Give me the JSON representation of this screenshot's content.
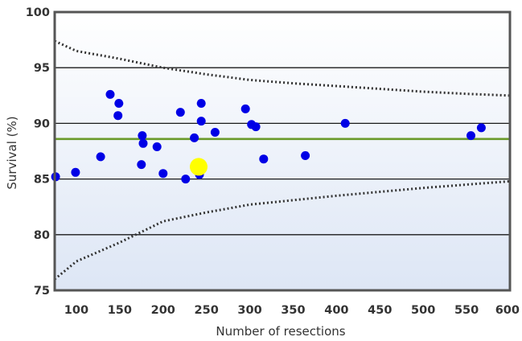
{
  "chart_data": {
    "type": "scatter",
    "title": "",
    "xlabel": "Number of resections",
    "ylabel": "Survival (%)",
    "xlim": [
      75,
      600
    ],
    "ylim": [
      75,
      100
    ],
    "x_ticks": [
      100,
      150,
      200,
      250,
      300,
      350,
      400,
      450,
      500,
      550,
      600
    ],
    "y_ticks": [
      75,
      80,
      85,
      90,
      95,
      100
    ],
    "x_tick_labels": [
      "100",
      "150",
      "200",
      "250",
      "300",
      "350",
      "400",
      "450",
      "500",
      "550",
      "600"
    ],
    "y_tick_labels": [
      "75",
      "80",
      "85",
      "90",
      "95",
      "100"
    ],
    "grid": "horizontal",
    "reference_line": {
      "y": 88.6,
      "color": "#6a9a2a"
    },
    "control_limits": {
      "upper": [
        [
          75,
          97.4
        ],
        [
          100,
          96.5
        ],
        [
          150,
          95.8
        ],
        [
          200,
          95.0
        ],
        [
          250,
          94.4
        ],
        [
          300,
          93.9
        ],
        [
          350,
          93.6
        ],
        [
          400,
          93.35
        ],
        [
          450,
          93.1
        ],
        [
          500,
          92.85
        ],
        [
          550,
          92.65
        ],
        [
          600,
          92.5
        ]
      ],
      "lower": [
        [
          75,
          76.0
        ],
        [
          100,
          77.6
        ],
        [
          150,
          79.3
        ],
        [
          200,
          81.2
        ],
        [
          250,
          82.0
        ],
        [
          300,
          82.7
        ],
        [
          350,
          83.1
        ],
        [
          400,
          83.5
        ],
        [
          450,
          83.85
        ],
        [
          500,
          84.2
        ],
        [
          550,
          84.5
        ],
        [
          600,
          84.8
        ]
      ],
      "style": "dotted",
      "color": "#333333"
    },
    "series": [
      {
        "color": "#0000e6",
        "points": [
          [
            76,
            85.2
          ],
          [
            99,
            85.6
          ],
          [
            128,
            87.0
          ],
          [
            139,
            92.6
          ],
          [
            148,
            90.7
          ],
          [
            149,
            91.8
          ],
          [
            175,
            86.3
          ],
          [
            176,
            88.9
          ],
          [
            177,
            88.2
          ],
          [
            193,
            87.9
          ],
          [
            200,
            85.5
          ],
          [
            220,
            91.0
          ],
          [
            226,
            85.0
          ],
          [
            236,
            88.7
          ],
          [
            242,
            85.4
          ],
          [
            244,
            91.8
          ],
          [
            244,
            90.2
          ],
          [
            260,
            89.2
          ],
          [
            295,
            91.3
          ],
          [
            302,
            89.9
          ],
          [
            307,
            89.7
          ],
          [
            316,
            86.8
          ],
          [
            364,
            87.1
          ],
          [
            410,
            90.0
          ],
          [
            555,
            88.9
          ],
          [
            567,
            89.6
          ]
        ]
      },
      {
        "color": "#ffff00",
        "highlight": true,
        "points": [
          [
            241,
            86.1
          ]
        ]
      }
    ]
  }
}
